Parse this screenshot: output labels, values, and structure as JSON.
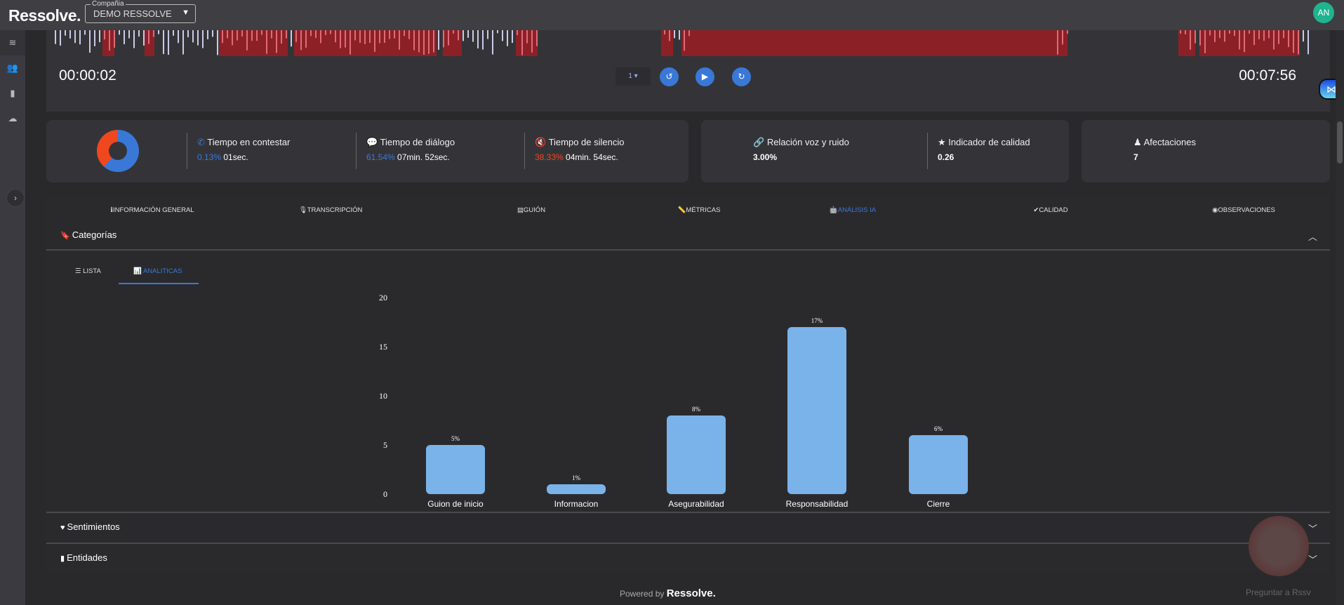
{
  "topbar": {
    "logo": "Ressolve.",
    "company_label": "Compañia",
    "company_value": "DEMO RESSOLVE",
    "avatar": "AN"
  },
  "sidebar": {
    "items": [
      {
        "icon": "layers-icon"
      },
      {
        "icon": "users-icon"
      },
      {
        "icon": "clipboard-icon"
      },
      {
        "icon": "cloud-upload-icon"
      }
    ],
    "expand": "›"
  },
  "player": {
    "start_time": "00:00:02",
    "end_time": "00:07:56",
    "speed": "1 ▾",
    "rewind": "↺",
    "play": "▶",
    "forward": "↻"
  },
  "stats": {
    "donut": {
      "dialogue_pct": 61.54,
      "silence_pct": 38.33,
      "answer_pct": 0.13,
      "colors": {
        "dialogue": "#3a78d8",
        "silence": "#f0471f"
      }
    },
    "items": [
      {
        "icon": "phone-icon",
        "title": "Tiempo en contestar",
        "pct": "0.13%",
        "value": "01sec.",
        "color": "#3a78d8"
      },
      {
        "icon": "chat-icon",
        "title": "Tiempo de diálogo",
        "pct": "61.54%",
        "value": "07min. 52sec.",
        "color": "#3a78d8"
      },
      {
        "icon": "mute-icon",
        "title": "Tiempo de silencio",
        "pct": "38.33%",
        "value": "04min. 54sec.",
        "color": "#f0471f"
      }
    ],
    "noise": {
      "title": "Relación voz y ruido",
      "value": "3.00%"
    },
    "quality": {
      "title": "Indicador de calidad",
      "value": "0.26"
    },
    "affect": {
      "title": "Afectaciones",
      "value": "7"
    }
  },
  "tabs": [
    "INFORMACIÓN GENERAL",
    "TRANSCRIPCIÓN",
    "GUIÓN",
    "MÉTRICAS",
    "ANÁLISIS IA",
    "CALIDAD",
    "OBSERVACIONES"
  ],
  "sections": {
    "categorias": "Categorías",
    "sentimientos": "Sentimientos",
    "entidades": "Entidades"
  },
  "subtabs": {
    "lista": "LISTA",
    "analiticas": "ANALITICAS"
  },
  "chart_data": {
    "type": "bar",
    "categories": [
      "Guion de inicio",
      "Informacion",
      "Asegurabilidad",
      "Responsabilidad",
      "Cierre"
    ],
    "values": [
      5,
      1,
      8,
      17,
      6
    ],
    "data_labels": [
      "5%",
      "1%",
      "8%",
      "17%",
      "6%"
    ],
    "ylim": [
      0,
      20
    ],
    "yticks": [
      "0",
      "5",
      "10",
      "15",
      "20"
    ],
    "bar_color": "#7ab3ea",
    "grid": false
  },
  "footer": {
    "powered": "Powered by",
    "brand": "Ressolve.",
    "ask": "Preguntar a Rssv"
  }
}
